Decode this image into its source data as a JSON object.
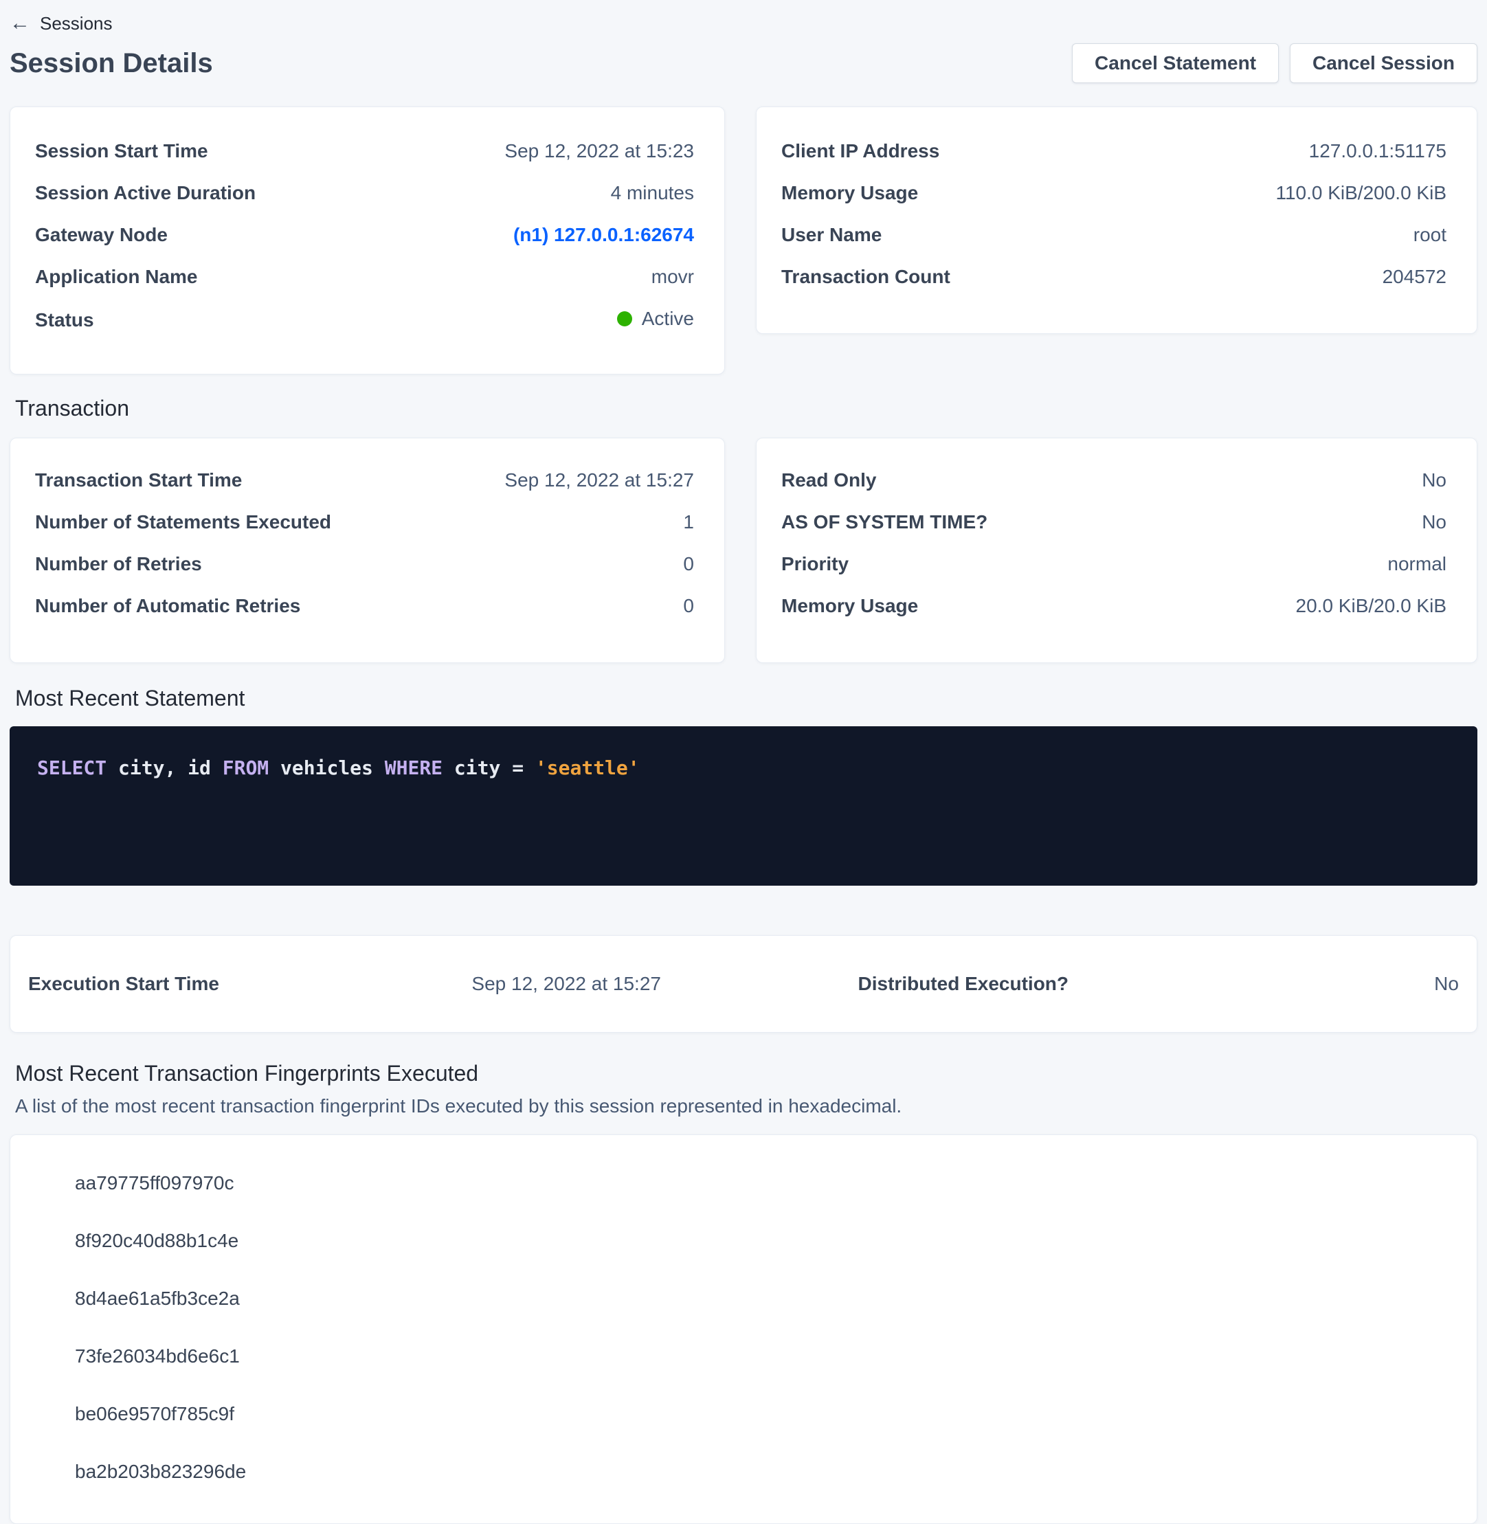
{
  "nav": {
    "back_label": "Sessions",
    "back_icon": "arrow-left"
  },
  "header": {
    "title": "Session Details",
    "cancel_statement_label": "Cancel Statement",
    "cancel_session_label": "Cancel Session"
  },
  "colors": {
    "page_bg": "#f5f7fa",
    "link_blue": "#0a62ff",
    "status_active_green": "#2db200",
    "sql_box_bg": "#101728",
    "sql_keyword": "#c5b1f0",
    "sql_plain": "#e7ebf2",
    "sql_string": "#efa33f"
  },
  "cards": {
    "session": {
      "rows": [
        {
          "label": "Session Start Time",
          "value": "Sep 12, 2022 at 15:23"
        },
        {
          "label": "Session Active Duration",
          "value": "4 minutes"
        }
      ],
      "gateway": {
        "label": "Gateway Node",
        "value": "(n1) 127.0.0.1:62674"
      },
      "app": {
        "label": "Application Name",
        "value": "movr"
      },
      "status": {
        "label": "Status",
        "value": "Active"
      }
    },
    "client": {
      "rows": [
        {
          "label": "Client IP Address",
          "value": "127.0.0.1:51175"
        },
        {
          "label": "Memory Usage",
          "value": "110.0 KiB/200.0 KiB"
        },
        {
          "label": "User Name",
          "value": "root"
        },
        {
          "label": "Transaction Count",
          "value": "204572"
        }
      ]
    }
  },
  "transaction_section": {
    "title": "Transaction",
    "left": {
      "rows": [
        {
          "label": "Transaction Start Time",
          "value": "Sep 12, 2022 at 15:27"
        },
        {
          "label": "Number of Statements Executed",
          "value": "1"
        },
        {
          "label": "Number of Retries",
          "value": "0"
        },
        {
          "label": "Number of Automatic Retries",
          "value": "0"
        }
      ]
    },
    "right": {
      "rows": [
        {
          "label": "Read Only",
          "value": "No"
        },
        {
          "label": "AS OF SYSTEM TIME?",
          "value": "No"
        },
        {
          "label": "Priority",
          "value": "normal"
        },
        {
          "label": "Memory Usage",
          "value": "20.0 KiB/20.0 KiB"
        }
      ]
    }
  },
  "statement_section": {
    "title": "Most Recent Statement",
    "sql_tokens": [
      {
        "text": "SELECT",
        "type": "keyword"
      },
      {
        "text": " city, id ",
        "type": "plain"
      },
      {
        "text": "FROM",
        "type": "keyword"
      },
      {
        "text": " vehicles ",
        "type": "plain"
      },
      {
        "text": "WHERE",
        "type": "keyword"
      },
      {
        "text": " city = ",
        "type": "plain"
      },
      {
        "text": "'seattle'",
        "type": "string"
      }
    ],
    "execution": {
      "start_label": "Execution Start Time",
      "start_value": "Sep 12, 2022 at 15:27",
      "distributed_label": "Distributed Execution?",
      "distributed_value": "No"
    }
  },
  "fingerprints_section": {
    "title": "Most Recent Transaction Fingerprints Executed",
    "subtitle": "A list of the most recent transaction fingerprint IDs executed by this session represented in hexadecimal.",
    "items": [
      "aa79775ff097970c",
      "8f920c40d88b1c4e",
      "8d4ae61a5fb3ce2a",
      "73fe26034bd6e6c1",
      "be06e9570f785c9f",
      "ba2b203b823296de"
    ]
  }
}
